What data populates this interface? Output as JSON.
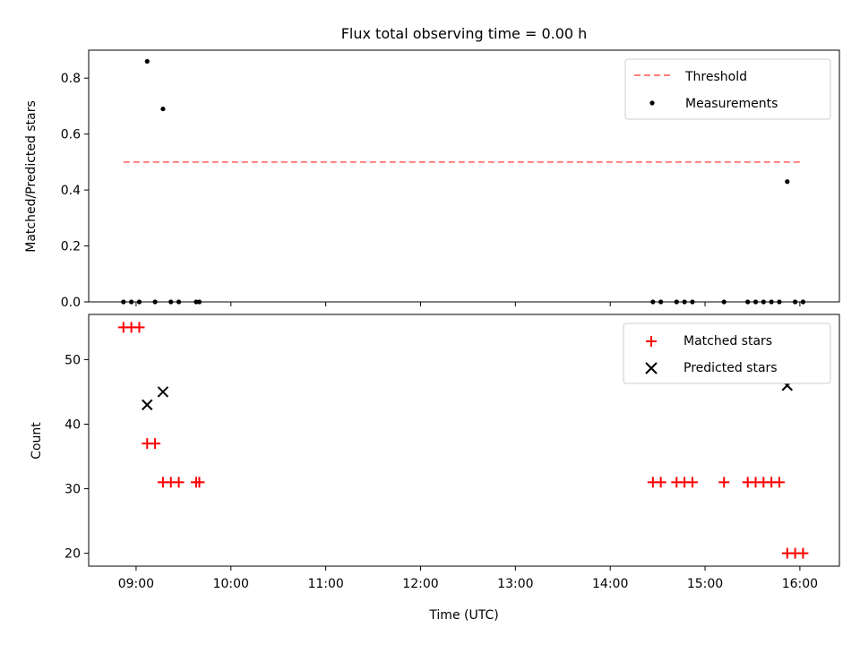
{
  "chart_data": {
    "title": "Flux total observing time = 0.00 h",
    "xlabel": "Time (UTC)",
    "xlim": [
      "08:30",
      "16:25"
    ],
    "x_ticks": [
      "09:00",
      "10:00",
      "11:00",
      "12:00",
      "13:00",
      "14:00",
      "15:00",
      "16:00"
    ],
    "panels": [
      {
        "type": "scatter",
        "ylabel": "Matched/Predicted stars",
        "ylim": [
          0,
          0.9
        ],
        "y_ticks": [
          "0.0",
          "0.2",
          "0.4",
          "0.6",
          "0.8"
        ],
        "legend_position": "top-right",
        "series": [
          {
            "name": "Threshold",
            "kind": "line",
            "style": "dashed",
            "color": "#ff7f7f",
            "points": [
              {
                "x": "08:52",
                "y": 0.5
              },
              {
                "x": "16:00",
                "y": 0.5
              }
            ]
          },
          {
            "name": "Measurements",
            "kind": "scatter",
            "marker": "dot",
            "color": "#000000",
            "points": [
              {
                "x": "08:52",
                "y": 0
              },
              {
                "x": "08:57",
                "y": 0
              },
              {
                "x": "09:02",
                "y": 0
              },
              {
                "x": "09:07",
                "y": 0.86
              },
              {
                "x": "09:12",
                "y": 0
              },
              {
                "x": "09:17",
                "y": 0.69
              },
              {
                "x": "09:22",
                "y": 0
              },
              {
                "x": "09:27",
                "y": 0
              },
              {
                "x": "09:38",
                "y": 0
              },
              {
                "x": "09:40",
                "y": 0
              },
              {
                "x": "14:27",
                "y": 0
              },
              {
                "x": "14:32",
                "y": 0
              },
              {
                "x": "14:42",
                "y": 0
              },
              {
                "x": "14:47",
                "y": 0
              },
              {
                "x": "14:52",
                "y": 0
              },
              {
                "x": "15:12",
                "y": 0
              },
              {
                "x": "15:27",
                "y": 0
              },
              {
                "x": "15:32",
                "y": 0
              },
              {
                "x": "15:37",
                "y": 0
              },
              {
                "x": "15:42",
                "y": 0
              },
              {
                "x": "15:47",
                "y": 0
              },
              {
                "x": "15:52",
                "y": 0.43
              },
              {
                "x": "15:57",
                "y": 0
              },
              {
                "x": "16:02",
                "y": 0
              }
            ]
          }
        ]
      },
      {
        "type": "scatter",
        "ylabel": "Count",
        "ylim": [
          18,
          57
        ],
        "y_ticks": [
          "20",
          "30",
          "40",
          "50"
        ],
        "legend_position": "top-right",
        "series": [
          {
            "name": "Matched stars",
            "marker": "plus",
            "color": "#ff0000",
            "points": [
              {
                "x": "08:52",
                "y": 55
              },
              {
                "x": "08:57",
                "y": 55
              },
              {
                "x": "09:02",
                "y": 55
              },
              {
                "x": "09:07",
                "y": 37
              },
              {
                "x": "09:12",
                "y": 37
              },
              {
                "x": "09:17",
                "y": 31
              },
              {
                "x": "09:22",
                "y": 31
              },
              {
                "x": "09:27",
                "y": 31
              },
              {
                "x": "09:38",
                "y": 31
              },
              {
                "x": "09:40",
                "y": 31
              },
              {
                "x": "14:27",
                "y": 31
              },
              {
                "x": "14:32",
                "y": 31
              },
              {
                "x": "14:42",
                "y": 31
              },
              {
                "x": "14:47",
                "y": 31
              },
              {
                "x": "14:52",
                "y": 31
              },
              {
                "x": "15:12",
                "y": 31
              },
              {
                "x": "15:27",
                "y": 31
              },
              {
                "x": "15:32",
                "y": 31
              },
              {
                "x": "15:37",
                "y": 31
              },
              {
                "x": "15:42",
                "y": 31
              },
              {
                "x": "15:47",
                "y": 31
              },
              {
                "x": "15:52",
                "y": 20
              },
              {
                "x": "15:57",
                "y": 20
              },
              {
                "x": "16:02",
                "y": 20
              }
            ]
          },
          {
            "name": "Predicted stars",
            "marker": "x",
            "color": "#000000",
            "points": [
              {
                "x": "09:07",
                "y": 43
              },
              {
                "x": "09:17",
                "y": 45
              },
              {
                "x": "15:52",
                "y": 46
              }
            ]
          }
        ]
      }
    ]
  }
}
